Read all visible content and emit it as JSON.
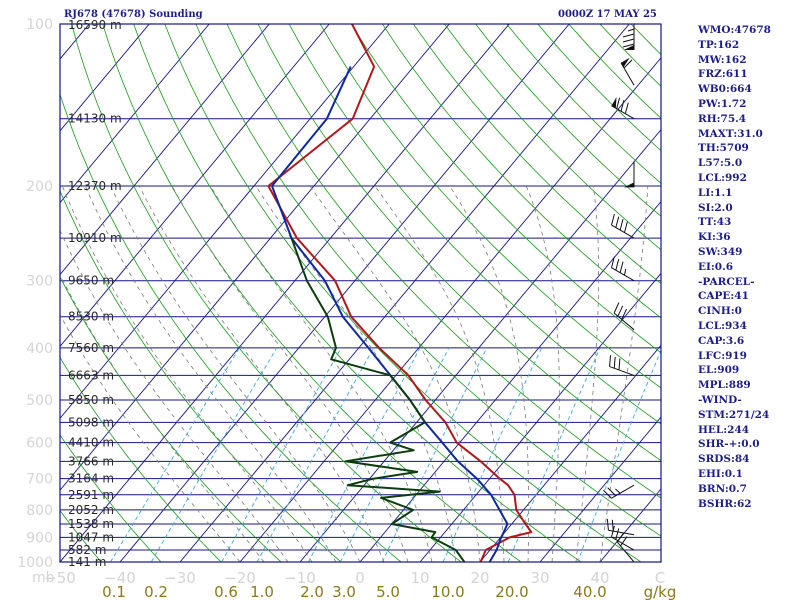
{
  "header": {
    "station": "RJ678 (47678) Sounding",
    "time": "0000Z 17 MAY 25"
  },
  "indices": [
    "WMO:47678",
    "TP:162",
    "MW:162",
    "FRZ:611",
    "WB0:664",
    "PW:1.72",
    "RH:75.4",
    "MAXT:31.0",
    "TH:5709",
    "L57:5.0",
    "LCL:992",
    "LI:1.1",
    "SI:2.0",
    "TT:43",
    "KI:36",
    "SW:349",
    "EI:0.6",
    "-PARCEL-",
    "CAPE:41",
    "CINH:0",
    "LCL:934",
    "CAP:3.6",
    "LFC:919",
    "EL:909",
    "MPL:889",
    "-WIND-",
    "STM:271/24",
    "HEL:244",
    "SHR-+:0.0",
    "SRDS:84",
    "EHI:0.1",
    "BRN:0.7",
    "BSHR:62"
  ],
  "chart_data": {
    "type": "line",
    "title": "RJ678 (47678) Sounding",
    "diagram": "skew-T log-P",
    "pressure_unit": "mb",
    "p_range": [
      100,
      1000
    ],
    "t_range": [
      -50,
      50
    ],
    "pressure_ticks": [
      "100",
      "200",
      "300",
      "400",
      "500",
      "600",
      "700",
      "800",
      "900",
      "1000"
    ],
    "temperature_ticks": [
      "−50",
      "−40",
      "−30",
      "−20",
      "−10",
      "0",
      "10",
      "20",
      "30",
      "40",
      "C"
    ],
    "mixing_ratio_ticks": [
      "0.1",
      "0.2",
      "0.6",
      "1.0",
      "2.0",
      "3.0",
      "5.0",
      "10.0",
      "20.0",
      "40.0",
      "g/kg"
    ],
    "isobars_labeled": [
      {
        "p": 150,
        "label": "14130 m"
      },
      {
        "p": 200,
        "label": "12370 m"
      },
      {
        "p": 250,
        "label": "10910 m"
      },
      {
        "p": 300,
        "label": "9650 m"
      },
      {
        "p": 350,
        "label": "8530 m"
      },
      {
        "p": 400,
        "label": "7560 m"
      },
      {
        "p": 450,
        "label": "6663 m"
      },
      {
        "p": 500,
        "label": "5850 m"
      },
      {
        "p": 550,
        "label": "5098 m"
      },
      {
        "p": 600,
        "label": "4410 m"
      },
      {
        "p": 650,
        "label": "3766 m"
      },
      {
        "p": 700,
        "label": "3164 m"
      },
      {
        "p": 750,
        "label": "2591 m"
      },
      {
        "p": 800,
        "label": "2052 m"
      },
      {
        "p": 850,
        "label": "1538 m"
      },
      {
        "p": 900,
        "label": "1047 m"
      },
      {
        "p": 950,
        "label": "582 m"
      },
      {
        "p": 1000,
        "label": "141 m"
      }
    ],
    "top_isobar_label": "16590 m",
    "series": [
      {
        "color": "#b0191a",
        "points": [
          [
            100,
            -76.2
          ],
          [
            120,
            -66.6
          ],
          [
            150,
            -62.9
          ],
          [
            200,
            -67.6
          ],
          [
            250,
            -55.6
          ],
          [
            300,
            -43.3
          ],
          [
            350,
            -35.6
          ],
          [
            400,
            -26.6
          ],
          [
            450,
            -17.9
          ],
          [
            500,
            -11.6
          ],
          [
            550,
            -5.2
          ],
          [
            600,
            -0.5
          ],
          [
            650,
            6.1
          ],
          [
            700,
            11.7
          ],
          [
            720,
            14.0
          ],
          [
            750,
            16.4
          ],
          [
            800,
            18.8
          ],
          [
            850,
            22.3
          ],
          [
            880,
            24.4
          ],
          [
            900,
            21.5
          ],
          [
            950,
            19.3
          ],
          [
            1000,
            20.1
          ]
        ]
      },
      {
        "color": "#0f2a9e",
        "points": [
          [
            120,
            -70.5
          ],
          [
            150,
            -67.2
          ],
          [
            200,
            -67.0
          ],
          [
            250,
            -56.5
          ],
          [
            300,
            -45.0
          ],
          [
            350,
            -37.0
          ],
          [
            400,
            -28.4
          ],
          [
            450,
            -20.9
          ],
          [
            500,
            -14.2
          ],
          [
            550,
            -8.6
          ],
          [
            600,
            -2.9
          ],
          [
            650,
            2.3
          ],
          [
            700,
            7.9
          ],
          [
            750,
            12.5
          ],
          [
            800,
            16.0
          ],
          [
            850,
            19.3
          ],
          [
            900,
            20.1
          ],
          [
            950,
            21.1
          ],
          [
            1000,
            21.6
          ]
        ]
      },
      {
        "color": "#0d3d0d",
        "points": [
          [
            250,
            -56.5
          ],
          [
            300,
            -48.0
          ],
          [
            350,
            -39.5
          ],
          [
            400,
            -33.8
          ],
          [
            420,
            -33.0
          ],
          [
            450,
            -20.9
          ],
          [
            500,
            -14.2
          ],
          [
            550,
            -8.6
          ],
          [
            600,
            -11.6
          ],
          [
            620,
            -6.6
          ],
          [
            650,
            -16.4
          ],
          [
            680,
            -3.0
          ],
          [
            700,
            -9.4
          ],
          [
            720,
            -12.7
          ],
          [
            740,
            3.5
          ],
          [
            760,
            -5.4
          ],
          [
            800,
            1.6
          ],
          [
            850,
            0.0
          ],
          [
            880,
            8.4
          ],
          [
            900,
            8.5
          ],
          [
            950,
            14.3
          ],
          [
            1000,
            17.4
          ]
        ]
      }
    ],
    "wind_barbs": [
      {
        "p": 100,
        "dir": 180,
        "spd": 85
      },
      {
        "p": 130,
        "dir": 330,
        "spd": 60
      },
      {
        "p": 150,
        "dir": 300,
        "spd": 80
      },
      {
        "p": 180,
        "dir": 180,
        "spd": 50
      },
      {
        "p": 250,
        "dir": 300,
        "spd": 40
      },
      {
        "p": 300,
        "dir": 300,
        "spd": 35
      },
      {
        "p": 370,
        "dir": 310,
        "spd": 30
      },
      {
        "p": 450,
        "dir": 290,
        "spd": 30
      },
      {
        "p": 720,
        "dir": 240,
        "spd": 25
      },
      {
        "p": 890,
        "dir": 280,
        "spd": 20
      },
      {
        "p": 950,
        "dir": 300,
        "spd": 20
      },
      {
        "p": 1000,
        "dir": 320,
        "spd": 20
      }
    ]
  },
  "colors": {
    "frame": "#14148a",
    "isotherm": "#14148a",
    "dry_adiabat": "#1a9a1a",
    "moist_adiabat": "#7a7a7a",
    "mixing_ratio": "#3aaad8",
    "temperature": "#b0191a",
    "parcel": "#0f2a9e",
    "dewpoint": "#0d3d0d",
    "tick_label": "#d4d4d4",
    "mixing_label": "#8a7a1a"
  }
}
